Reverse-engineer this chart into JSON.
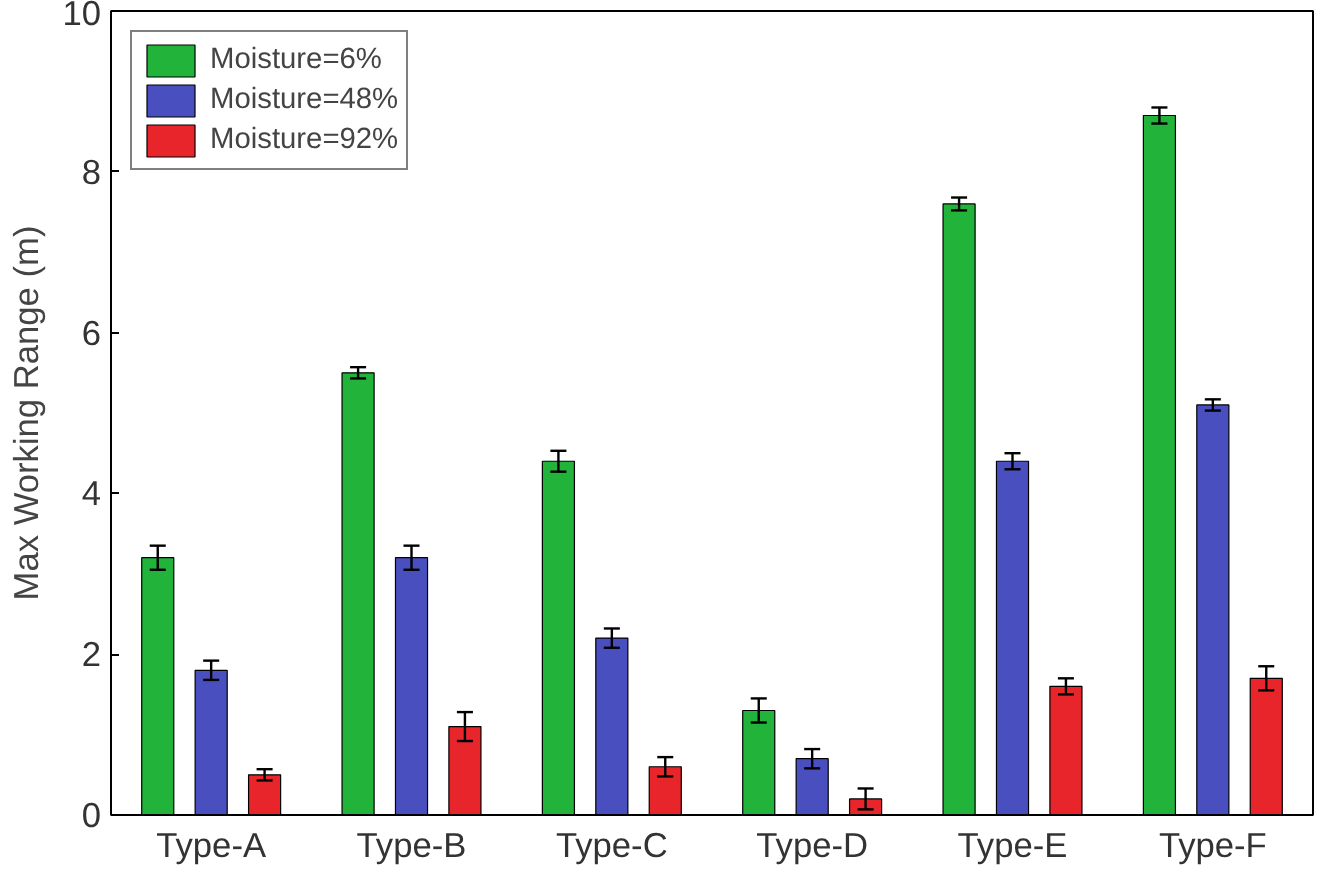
{
  "chart_data": {
    "type": "bar",
    "ylabel": "Max Working Range (m)",
    "categories": [
      "Type-A",
      "Type-B",
      "Type-C",
      "Type-D",
      "Type-E",
      "Type-F"
    ],
    "series": [
      {
        "name": "Moisture=6%",
        "color": "#22b33a",
        "values": [
          3.2,
          5.5,
          4.4,
          1.3,
          7.6,
          8.7
        ],
        "errors": [
          0.15,
          0.07,
          0.13,
          0.15,
          0.08,
          0.1
        ]
      },
      {
        "name": "Moisture=48%",
        "color": "#4a4fbf",
        "values": [
          1.8,
          3.2,
          2.2,
          0.7,
          4.4,
          5.1
        ],
        "errors": [
          0.12,
          0.15,
          0.12,
          0.12,
          0.1,
          0.07
        ]
      },
      {
        "name": "Moisture=92%",
        "color": "#e8252a",
        "values": [
          0.5,
          1.1,
          0.6,
          0.2,
          1.6,
          1.7
        ],
        "errors": [
          0.07,
          0.18,
          0.12,
          0.13,
          0.1,
          0.15
        ]
      }
    ],
    "ylim": [
      0,
      10
    ],
    "yticks": [
      0,
      2,
      4,
      6,
      8,
      10
    ],
    "legend": "top left",
    "grid": false
  }
}
